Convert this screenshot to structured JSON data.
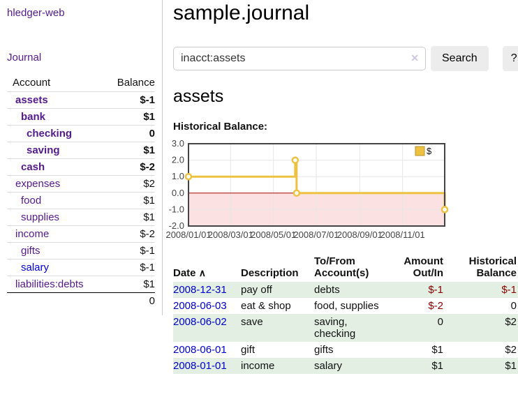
{
  "app": {
    "title": "hledger-web",
    "nav_journal": "Journal"
  },
  "colors": {
    "link_visited_purple": "#551a8b",
    "link_unvisited_blue": "#0000dd",
    "negative_strong": "#8b0000",
    "negative_soft": "#c47472",
    "row_stripe_green": "#e2efe2",
    "chart_series_yellow": "#EDC240"
  },
  "sidebar": {
    "header": {
      "account": "Account",
      "balance": "Balance"
    },
    "accounts": [
      {
        "name": "assets",
        "balance": "$-1",
        "level": 1,
        "bold": true,
        "balance_style": "neg-strong",
        "link_style": "visited"
      },
      {
        "name": "bank",
        "balance": "$1",
        "level": 2,
        "bold": true,
        "balance_style": "",
        "link_style": "visited"
      },
      {
        "name": "checking",
        "balance": "0",
        "level": 3,
        "bold": true,
        "balance_style": "",
        "link_style": "visited"
      },
      {
        "name": "saving",
        "balance": "$1",
        "level": 3,
        "bold": true,
        "balance_style": "",
        "link_style": "visited"
      },
      {
        "name": "cash",
        "balance": "$-2",
        "level": 2,
        "bold": true,
        "balance_style": "neg-strong",
        "link_style": "visited"
      },
      {
        "name": "expenses",
        "balance": "$2",
        "level": 1,
        "bold": false,
        "balance_style": "",
        "link_style": "visited"
      },
      {
        "name": "food",
        "balance": "$1",
        "level": 2,
        "bold": false,
        "balance_style": "",
        "link_style": "visited"
      },
      {
        "name": "supplies",
        "balance": "$1",
        "level": 2,
        "bold": false,
        "balance_style": "",
        "link_style": "visited"
      },
      {
        "name": "income",
        "balance": "$-2",
        "level": 1,
        "bold": false,
        "balance_style": "neg-soft",
        "link_style": "visited"
      },
      {
        "name": "gifts",
        "balance": "$-1",
        "level": 2,
        "bold": false,
        "balance_style": "neg-soft",
        "link_style": "visited"
      },
      {
        "name": "salary",
        "balance": "$-1",
        "level": 2,
        "bold": false,
        "balance_style": "neg-soft",
        "link_style": "unvisited"
      },
      {
        "name": "liabilities:debts",
        "balance": "$1",
        "level": 1,
        "bold": false,
        "balance_style": "",
        "link_style": "visited"
      }
    ],
    "total": "0"
  },
  "main": {
    "title": "sample.journal",
    "search": {
      "value": "inacct:assets",
      "clear_icon": "✕",
      "button_label": "Search",
      "help_label": "?"
    },
    "account_heading": "assets",
    "chart_label": "Historical Balance:"
  },
  "chart_data": {
    "type": "line",
    "title": "Historical Balance",
    "style": "step",
    "series": [
      {
        "name": "$",
        "color": "#EDC240",
        "points": [
          [
            "2008-01-01",
            1
          ],
          [
            "2008-06-01",
            2
          ],
          [
            "2008-06-03",
            0
          ],
          [
            "2008-12-31",
            -1
          ]
        ],
        "points_days": [
          [
            0,
            1
          ],
          [
            152,
            2
          ],
          [
            154,
            0
          ],
          [
            365,
            -1
          ]
        ]
      }
    ],
    "x_ticks": [
      "2008/01/01",
      "2008/03/01",
      "2008/05/01",
      "2008/07/01",
      "2008/09/01",
      "2008/11/01"
    ],
    "x_tick_days": [
      0,
      60,
      121,
      182,
      244,
      305
    ],
    "x_range_days": [
      0,
      365
    ],
    "y_ticks": [
      3.0,
      2.0,
      1.0,
      0.0,
      -1.0,
      -2.0
    ],
    "ylim": [
      -2,
      3
    ],
    "grid": true,
    "grid_color": "#e6e6e6",
    "border_color": "#444444",
    "zero_line_color": "#aa0000",
    "negative_region_color": "#fbe1e1",
    "legend": {
      "label": "$",
      "position": "top-right"
    }
  },
  "table": {
    "sort_icon": "∧",
    "headers": {
      "date": "Date",
      "description": "Description",
      "accounts": "To/From Account(s)",
      "amount": "Amount Out/In",
      "balance": "Historical Balance"
    },
    "rows": [
      {
        "date": "2008-12-31",
        "description": "pay off",
        "accounts": "debts",
        "amount": "$-1",
        "balance": "$-1",
        "amount_negative": true,
        "balance_negative": true
      },
      {
        "date": "2008-06-03",
        "description": "eat & shop",
        "accounts": "food, supplies",
        "amount": "$-2",
        "balance": "0",
        "amount_negative": true,
        "balance_negative": false
      },
      {
        "date": "2008-06-02",
        "description": "save",
        "accounts": "saving, checking",
        "amount": "0",
        "balance": "$2",
        "amount_negative": false,
        "balance_negative": false
      },
      {
        "date": "2008-06-01",
        "description": "gift",
        "accounts": "gifts",
        "amount": "$1",
        "balance": "$2",
        "amount_negative": false,
        "balance_negative": false
      },
      {
        "date": "2008-01-01",
        "description": "income",
        "accounts": "salary",
        "amount": "$1",
        "balance": "$1",
        "amount_negative": false,
        "balance_negative": false
      }
    ]
  }
}
